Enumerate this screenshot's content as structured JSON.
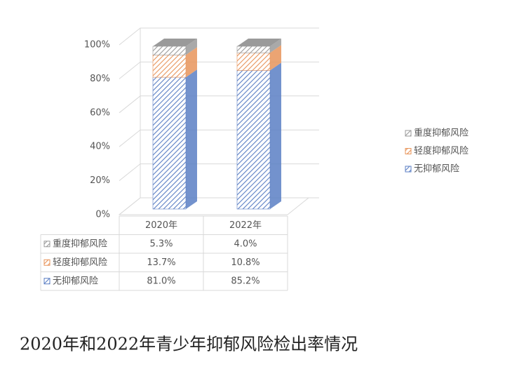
{
  "chart_data": {
    "type": "stacked_bar_3d",
    "title": "2020年和2022年青少年抑郁风险检出率情况",
    "categories": [
      "2020年",
      "2022年"
    ],
    "series": [
      {
        "name": "无抑郁风险",
        "color": "#5b7fc4",
        "values": [
          81.0,
          85.2
        ],
        "value_labels": [
          "81.0%",
          "85.2%"
        ]
      },
      {
        "name": "轻度抑郁风险",
        "color": "#e8945a",
        "values": [
          13.7,
          10.8
        ],
        "value_labels": [
          "13.7%",
          "10.8%"
        ]
      },
      {
        "name": "重度抑郁风险",
        "color": "#9a9a9a",
        "values": [
          5.3,
          4.0
        ],
        "value_labels": [
          "5.3%",
          "4.0%"
        ]
      }
    ],
    "ylim": [
      0,
      100
    ],
    "yticks": [
      {
        "value": 0,
        "label": "0%"
      },
      {
        "value": 20,
        "label": "20%"
      },
      {
        "value": 40,
        "label": "40%"
      },
      {
        "value": 60,
        "label": "60%"
      },
      {
        "value": 80,
        "label": "80%"
      },
      {
        "value": 100,
        "label": "100%"
      }
    ],
    "grid": true,
    "legend": "right"
  }
}
